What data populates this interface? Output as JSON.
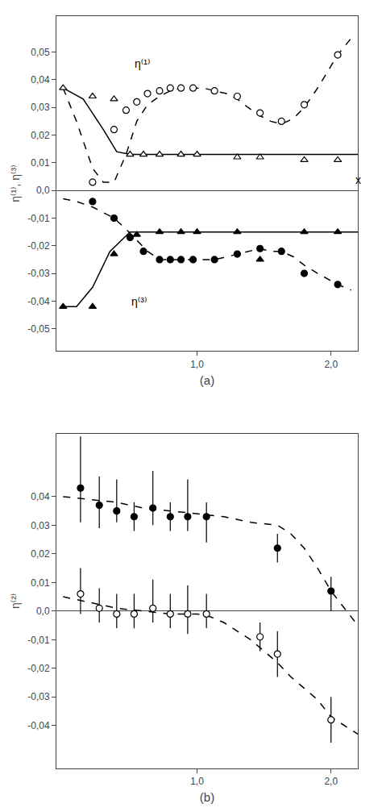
{
  "chart_data": [
    {
      "type": "scatter",
      "ylabel": "η⁽¹⁾, η⁽³⁾",
      "xlabel": "(a)",
      "xlim": [
        -0.05,
        2.2
      ],
      "ylim": [
        -0.058,
        0.063
      ],
      "xticks": [
        {
          "value": 1.0,
          "label": "1,0"
        },
        {
          "value": 2.0,
          "label": "2,0"
        }
      ],
      "yticks": [
        {
          "value": -0.05,
          "label": "-0,05"
        },
        {
          "value": -0.04,
          "label": "-0,04"
        },
        {
          "value": -0.03,
          "label": "-0,03"
        },
        {
          "value": -0.02,
          "label": "-0,02"
        },
        {
          "value": -0.01,
          "label": "-0,01"
        },
        {
          "value": 0.0,
          "label": "0,0"
        },
        {
          "value": 0.01,
          "label": "0,01"
        },
        {
          "value": 0.02,
          "label": "0,02"
        },
        {
          "value": 0.03,
          "label": "0,03"
        },
        {
          "value": 0.04,
          "label": "0,04"
        },
        {
          "value": 0.05,
          "label": "0,05"
        }
      ],
      "grid": false,
      "series": [
        {
          "type": "line",
          "line_style": "dashed",
          "color": "black",
          "x": [
            0.0,
            0.1,
            0.22,
            0.3,
            0.38,
            0.47,
            0.55,
            0.63,
            0.72,
            0.8,
            0.88,
            0.97,
            1.05,
            1.13,
            1.22,
            1.3,
            1.38,
            1.47,
            1.55,
            1.63,
            1.72,
            1.8,
            1.9,
            2.05,
            2.15
          ],
          "values": [
            0.037,
            0.025,
            0.008,
            0.003,
            0.003,
            0.013,
            0.025,
            0.031,
            0.034,
            0.036,
            0.037,
            0.037,
            0.037,
            0.036,
            0.035,
            0.033,
            0.03,
            0.027,
            0.025,
            0.024,
            0.026,
            0.03,
            0.037,
            0.049,
            0.055
          ]
        },
        {
          "type": "line",
          "line_style": "dashed",
          "color": "black",
          "x": [
            0.0,
            0.1,
            0.22,
            0.3,
            0.38,
            0.47,
            0.55,
            0.63,
            0.72,
            0.8,
            0.88,
            0.97,
            1.05,
            1.13,
            1.22,
            1.3,
            1.38,
            1.47,
            1.55,
            1.63,
            1.72,
            1.8,
            1.9,
            2.05,
            2.15
          ],
          "values": [
            -0.003,
            -0.004,
            -0.006,
            -0.008,
            -0.01,
            -0.014,
            -0.018,
            -0.022,
            -0.025,
            -0.025,
            -0.025,
            -0.025,
            -0.025,
            -0.025,
            -0.024,
            -0.023,
            -0.022,
            -0.021,
            -0.022,
            -0.022,
            -0.024,
            -0.027,
            -0.03,
            -0.034,
            -0.036
          ]
        },
        {
          "type": "line",
          "line_style": "solid",
          "color": "black",
          "x": [
            0.0,
            0.15,
            0.3,
            0.4,
            0.5,
            0.65,
            0.8,
            1.0,
            1.5,
            2.0,
            2.2
          ],
          "values": [
            0.037,
            0.033,
            0.022,
            0.014,
            0.013,
            0.013,
            0.013,
            0.013,
            0.013,
            0.013,
            0.013
          ]
        },
        {
          "type": "line",
          "line_style": "solid",
          "color": "black",
          "x": [
            0.0,
            0.1,
            0.22,
            0.35,
            0.5,
            0.65,
            0.8,
            1.0,
            1.5,
            2.0,
            2.2
          ],
          "values": [
            -0.042,
            -0.042,
            -0.035,
            -0.022,
            -0.015,
            -0.015,
            -0.015,
            -0.015,
            -0.015,
            -0.015,
            -0.015
          ]
        },
        {
          "type": "scatter",
          "marker": "circle-open",
          "color": "black",
          "x": [
            0.22,
            0.38,
            0.47,
            0.55,
            0.63,
            0.72,
            0.8,
            0.88,
            0.97,
            1.13,
            1.3,
            1.47,
            1.63,
            1.8,
            2.05
          ],
          "values": [
            0.003,
            0.022,
            0.029,
            0.032,
            0.035,
            0.036,
            0.037,
            0.037,
            0.037,
            0.036,
            0.034,
            0.028,
            0.025,
            0.031,
            0.049
          ]
        },
        {
          "type": "scatter",
          "marker": "triangle-up-open",
          "color": "black",
          "x": [
            0.0,
            0.22,
            0.38,
            0.5,
            0.6,
            0.72,
            0.88,
            1.0,
            1.3,
            1.47,
            1.8,
            2.05
          ],
          "values": [
            0.037,
            0.034,
            0.033,
            0.013,
            0.013,
            0.013,
            0.013,
            0.013,
            0.012,
            0.012,
            0.011,
            0.011
          ]
        },
        {
          "type": "scatter",
          "marker": "circle",
          "color": "black",
          "x": [
            0.22,
            0.38,
            0.5,
            0.6,
            0.72,
            0.8,
            0.88,
            0.97,
            1.13,
            1.3,
            1.47,
            1.63,
            1.8,
            2.05
          ],
          "values": [
            -0.004,
            -0.01,
            -0.017,
            -0.022,
            -0.025,
            -0.025,
            -0.025,
            -0.025,
            -0.025,
            -0.023,
            -0.021,
            -0.022,
            -0.03,
            -0.034
          ]
        },
        {
          "type": "scatter",
          "marker": "triangle-up",
          "color": "black",
          "x": [
            0.0,
            0.22,
            0.38,
            0.55,
            0.72,
            0.88,
            1.0,
            1.3,
            1.47,
            1.8,
            2.05
          ],
          "values": [
            -0.042,
            -0.042,
            -0.023,
            -0.016,
            -0.015,
            -0.015,
            -0.015,
            -0.015,
            -0.025,
            -0.015,
            -0.015
          ]
        }
      ],
      "annotations": [
        {
          "text": "η⁽¹⁾",
          "x": 0.52,
          "y": 0.043
        },
        {
          "text": "η⁽³⁾",
          "x": 0.5,
          "y": -0.043
        },
        {
          "text": "x",
          "x": 2.17,
          "y": 0.001
        }
      ]
    },
    {
      "type": "scatter",
      "ylabel": "η⁽²⁾",
      "xlabel": "(b)",
      "xlim": [
        -0.05,
        2.2
      ],
      "ylim": [
        -0.055,
        0.062
      ],
      "xticks": [
        {
          "value": 1.0,
          "label": "1,0"
        },
        {
          "value": 2.0,
          "label": "2,0"
        }
      ],
      "yticks": [
        {
          "value": -0.04,
          "label": "-0,04"
        },
        {
          "value": -0.03,
          "label": "-0,03"
        },
        {
          "value": -0.02,
          "label": "-0,02"
        },
        {
          "value": -0.01,
          "label": "-0,01"
        },
        {
          "value": 0.0,
          "label": "0,0"
        },
        {
          "value": 0.01,
          "label": "0,01"
        },
        {
          "value": 0.02,
          "label": "0,02"
        },
        {
          "value": 0.03,
          "label": "0,03"
        },
        {
          "value": 0.04,
          "label": "0,04"
        }
      ],
      "grid": false,
      "series": [
        {
          "type": "line",
          "line_style": "dashed",
          "color": "black",
          "x": [
            0.0,
            0.2,
            0.4,
            0.6,
            0.8,
            1.0,
            1.2,
            1.4,
            1.6,
            1.7,
            1.8,
            1.9,
            2.0,
            2.1,
            2.2
          ],
          "values": [
            0.04,
            0.039,
            0.038,
            0.036,
            0.035,
            0.034,
            0.033,
            0.031,
            0.03,
            0.027,
            0.022,
            0.015,
            0.007,
            0.001,
            -0.005
          ]
        },
        {
          "type": "line",
          "line_style": "dashed",
          "color": "black",
          "x": [
            0.0,
            0.2,
            0.4,
            0.6,
            0.8,
            1.0,
            1.1,
            1.2,
            1.3,
            1.4,
            1.5,
            1.6,
            1.7,
            1.8,
            1.9,
            2.0,
            2.1,
            2.2
          ],
          "values": [
            0.005,
            0.003,
            0.001,
            0.0,
            -0.001,
            -0.001,
            -0.002,
            -0.004,
            -0.007,
            -0.01,
            -0.014,
            -0.018,
            -0.023,
            -0.027,
            -0.031,
            -0.037,
            -0.04,
            -0.043
          ]
        },
        {
          "type": "scatter",
          "marker": "circle",
          "color": "black",
          "x": [
            0.13,
            0.27,
            0.4,
            0.53,
            0.67,
            0.8,
            0.93,
            1.07,
            1.6,
            2.0
          ],
          "values": [
            0.043,
            0.037,
            0.035,
            0.033,
            0.036,
            0.033,
            0.033,
            0.033,
            0.022,
            0.007
          ],
          "error_minus": [
            0.012,
            0.008,
            0.004,
            0.005,
            0.006,
            0.005,
            0.005,
            0.009,
            0.005,
            0.007
          ],
          "error_plus": [
            0.018,
            0.01,
            0.011,
            0.005,
            0.013,
            0.005,
            0.013,
            0.005,
            0.005,
            0.005
          ]
        },
        {
          "type": "scatter",
          "marker": "circle-open",
          "color": "black",
          "x": [
            0.13,
            0.27,
            0.4,
            0.53,
            0.67,
            0.8,
            0.93,
            1.07,
            1.47,
            1.6,
            2.0
          ],
          "values": [
            0.006,
            0.001,
            -0.001,
            -0.001,
            0.001,
            -0.001,
            -0.001,
            -0.001,
            -0.009,
            -0.015,
            -0.038
          ],
          "error_minus": [
            0.007,
            0.005,
            0.005,
            0.005,
            0.005,
            0.005,
            0.007,
            0.005,
            0.005,
            0.008,
            0.008
          ],
          "error_plus": [
            0.009,
            0.007,
            0.007,
            0.007,
            0.01,
            0.007,
            0.01,
            0.007,
            0.005,
            0.008,
            0.008
          ]
        }
      ]
    }
  ]
}
